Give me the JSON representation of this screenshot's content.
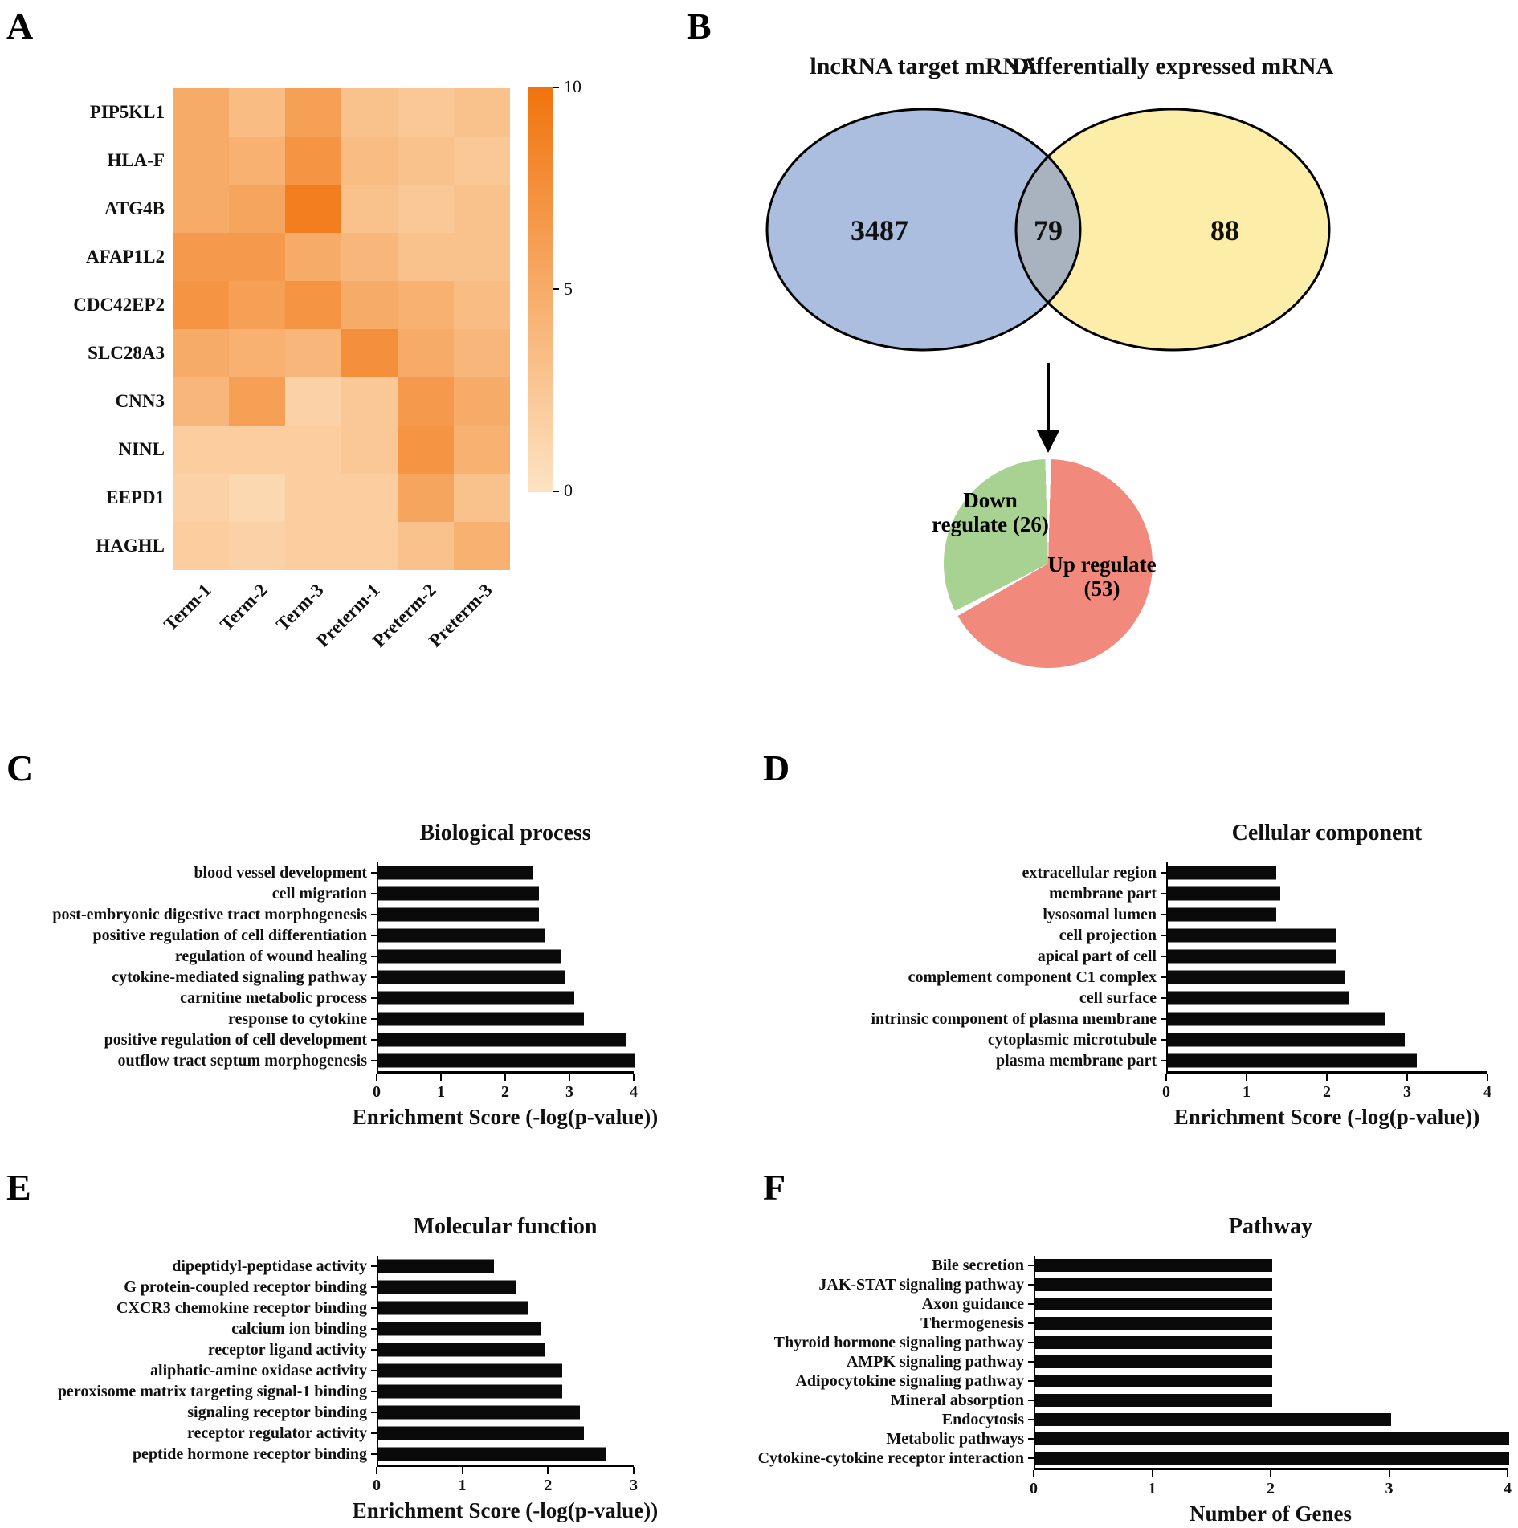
{
  "figure": {
    "panel_letters": {
      "a": "A",
      "b": "B",
      "c": "C",
      "d": "D",
      "e": "E",
      "f": "F"
    }
  },
  "chart_data": [
    {
      "panel": "A",
      "type": "heatmap",
      "rows": [
        "PIP5KL1",
        "HLA-F",
        "ATG4B",
        "AFAP1L2",
        "CDC42EP2",
        "SLC28A3",
        "CNN3",
        "NINL",
        "EEPD1",
        "HAGHL"
      ],
      "columns": [
        "Term-1",
        "Term-2",
        "Term-3",
        "Preterm-1",
        "Preterm-2",
        "Preterm-3"
      ],
      "values": [
        [
          5,
          3.5,
          6,
          3,
          2.5,
          3
        ],
        [
          5,
          4.5,
          7,
          3.5,
          3,
          2.5
        ],
        [
          5,
          5.5,
          9,
          3,
          2.5,
          3
        ],
        [
          6.5,
          6.5,
          5,
          4,
          3,
          3
        ],
        [
          7,
          6,
          7,
          5,
          4.5,
          3.5
        ],
        [
          5,
          4.5,
          4,
          7.5,
          5,
          4
        ],
        [
          4,
          6,
          1.5,
          2.5,
          6.5,
          5
        ],
        [
          2,
          2,
          2,
          2.5,
          7,
          4.5
        ],
        [
          1.5,
          1,
          2,
          2,
          5.5,
          3
        ],
        [
          2,
          1.5,
          2,
          2,
          3,
          4.5
        ]
      ],
      "colorbar": {
        "min": 0,
        "max": 10,
        "ticks": [
          "10",
          "5",
          "0"
        ],
        "low_color": "#FDE3C3",
        "high_color": "#F1730D"
      }
    },
    {
      "panel": "B",
      "type": "venn",
      "sets": [
        {
          "label": "lncRNA target mRNA",
          "value": "3487",
          "color": "#ACBEDF"
        },
        {
          "label": "Differentially expressed mRNA",
          "value": "88",
          "color": "#FCEDA8"
        }
      ],
      "overlap": {
        "value": "79",
        "color": "#A9B3BF"
      }
    },
    {
      "panel": "B",
      "type": "pie",
      "slices": [
        {
          "label": "Up regulate (53)",
          "value": 53,
          "color": "#F18A7C"
        },
        {
          "label": "Down regulate (26)",
          "value": 26,
          "color": "#A7D291"
        }
      ]
    },
    {
      "panel": "C",
      "type": "bar",
      "title": "Biological process",
      "xlabel": "Enrichment Score (-log(p-value))",
      "xmax": 4,
      "xticks": [
        0,
        1,
        2,
        3,
        4
      ],
      "categories": [
        "blood vessel development",
        "cell migration",
        "post-embryonic digestive tract morphogenesis",
        "positive regulation of cell differentiation",
        "regulation of wound healing",
        "cytokine-mediated signaling pathway",
        "carnitine metabolic process",
        "response to cytokine",
        "positive regulation of cell development",
        "outflow tract septum morphogenesis"
      ],
      "values": [
        2.4,
        2.5,
        2.5,
        2.6,
        2.85,
        2.9,
        3.05,
        3.2,
        3.85,
        4.0
      ]
    },
    {
      "panel": "D",
      "type": "bar",
      "title": "Cellular component",
      "xlabel": "Enrichment Score (-log(p-value))",
      "xmax": 4,
      "xticks": [
        0,
        1,
        2,
        3,
        4
      ],
      "categories": [
        "extracellular region",
        "membrane part",
        "lysosomal lumen",
        "cell projection",
        "apical part of cell",
        "complement component C1 complex",
        "cell surface",
        "intrinsic component of plasma membrane",
        "cytoplasmic microtubule",
        "plasma membrane part"
      ],
      "values": [
        1.35,
        1.4,
        1.35,
        2.1,
        2.1,
        2.2,
        2.25,
        2.7,
        2.95,
        3.1
      ]
    },
    {
      "panel": "E",
      "type": "bar",
      "title": "Molecular function",
      "xlabel": "Enrichment Score (-log(p-value))",
      "xmax": 3,
      "xticks": [
        0,
        1,
        2,
        3
      ],
      "categories": [
        "dipeptidyl-peptidase activity",
        "G protein-coupled receptor binding",
        "CXCR3 chemokine receptor binding",
        "calcium ion binding",
        "receptor ligand activity",
        "aliphatic-amine oxidase activity",
        "peroxisome matrix targeting signal-1 binding",
        "signaling receptor binding",
        "receptor regulator activity",
        "peptide hormone receptor binding"
      ],
      "values": [
        1.35,
        1.6,
        1.75,
        1.9,
        1.95,
        2.15,
        2.15,
        2.35,
        2.4,
        2.65
      ]
    },
    {
      "panel": "F",
      "type": "bar",
      "title": "Pathway",
      "xlabel": "Number of Genes",
      "xmax": 4,
      "xticks": [
        0,
        1,
        2,
        3,
        4
      ],
      "categories": [
        "Bile secretion",
        "JAK-STAT signaling pathway",
        "Axon guidance",
        "Thermogenesis",
        "Thyroid hormone signaling pathway",
        "AMPK signaling pathway",
        "Adipocytokine signaling pathway",
        "Mineral absorption",
        "Endocytosis",
        "Metabolic pathways",
        "Cytokine-cytokine receptor interaction"
      ],
      "values": [
        2,
        2,
        2,
        2,
        2,
        2,
        2,
        2,
        3,
        4,
        4
      ]
    }
  ]
}
